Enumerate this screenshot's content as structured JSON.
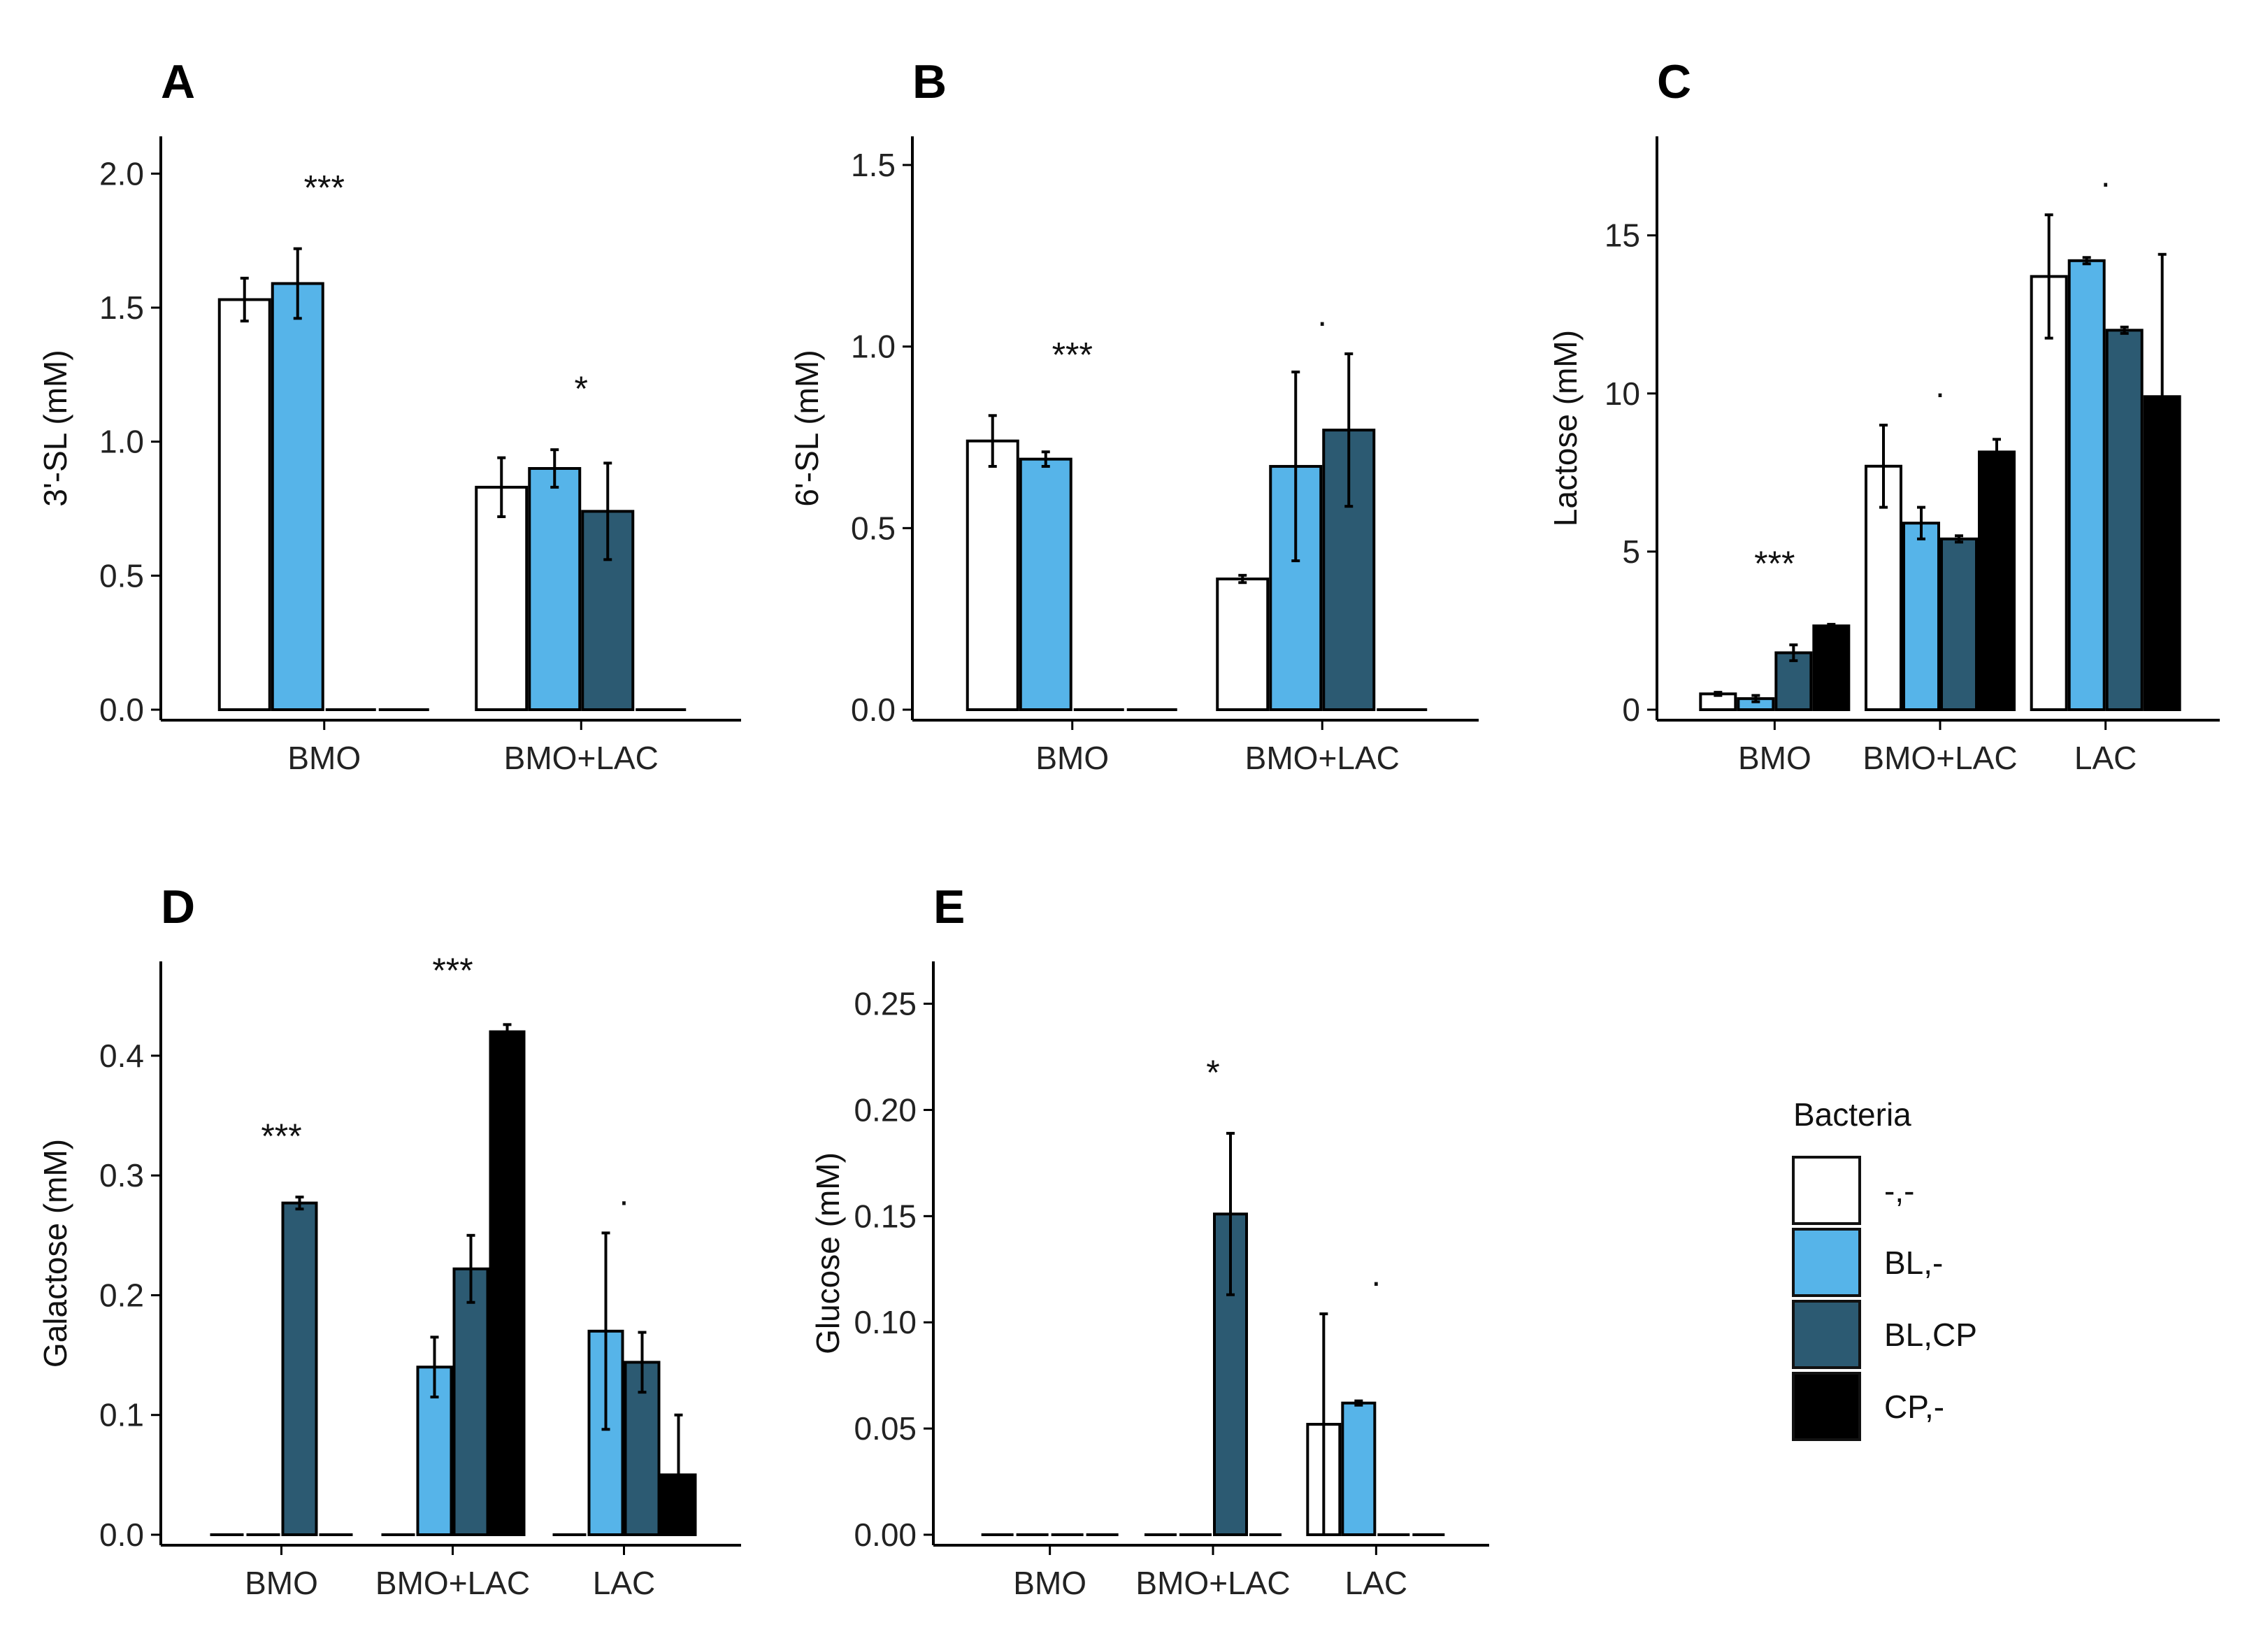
{
  "figure": {
    "legend": {
      "title": "Bacteria",
      "entries": [
        {
          "label": "-,-",
          "color": "#ffffff"
        },
        {
          "label": "BL,-",
          "color": "#56b4e9"
        },
        {
          "label": "BL,CP",
          "color": "#2c5a72"
        },
        {
          "label": "CP,-",
          "color": "#000000"
        }
      ]
    }
  },
  "chart_data": [
    {
      "panel": "A",
      "type": "bar",
      "ylabel": "3'-SL (mM)",
      "categories": [
        "BMO",
        "BMO+LAC"
      ],
      "ylim": [
        0,
        2.1
      ],
      "yticks": [
        0.0,
        0.5,
        1.0,
        1.5,
        2.0
      ],
      "tick_labels": [
        "0.0",
        "0.5",
        "1.0",
        "1.5",
        "2.0"
      ],
      "series": [
        {
          "name": "-,-",
          "values": [
            1.53,
            0.83
          ],
          "errors": [
            0.08,
            0.11
          ]
        },
        {
          "name": "BL,-",
          "values": [
            1.59,
            0.9
          ],
          "errors": [
            0.13,
            0.07
          ]
        },
        {
          "name": "BL,CP",
          "values": [
            0,
            0.74
          ],
          "errors": [
            0,
            0.18
          ]
        },
        {
          "name": "CP,-",
          "values": [
            0,
            0
          ],
          "errors": [
            0,
            0
          ]
        }
      ],
      "annotations": [
        {
          "group": 0,
          "text": "***"
        },
        {
          "group": 1,
          "text": "*"
        }
      ]
    },
    {
      "panel": "B",
      "type": "bar",
      "ylabel": "6'-SL (mM)",
      "categories": [
        "BMO",
        "BMO+LAC"
      ],
      "ylim": [
        0,
        1.55
      ],
      "yticks": [
        0.0,
        0.5,
        1.0,
        1.5
      ],
      "tick_labels": [
        "0.0",
        "0.5",
        "1.0",
        "1.5"
      ],
      "series": [
        {
          "name": "-,-",
          "values": [
            0.74,
            0.36
          ],
          "errors": [
            0.07,
            0.01
          ]
        },
        {
          "name": "BL,-",
          "values": [
            0.69,
            0.67
          ],
          "errors": [
            0.02,
            0.26
          ]
        },
        {
          "name": "BL,CP",
          "values": [
            0,
            0.77
          ],
          "errors": [
            0,
            0.21
          ]
        },
        {
          "name": "CP,-",
          "values": [
            0,
            0
          ],
          "errors": [
            0,
            0
          ]
        }
      ],
      "annotations": [
        {
          "group": 0,
          "text": "***"
        },
        {
          "group": 1,
          "text": "."
        }
      ]
    },
    {
      "panel": "C",
      "type": "bar",
      "ylabel": "Lactose (mM)",
      "categories": [
        "BMO",
        "BMO+LAC",
        "LAC"
      ],
      "ylim": [
        0,
        17.8
      ],
      "yticks": [
        0,
        5,
        10,
        15
      ],
      "tick_labels": [
        "0",
        "5",
        "10",
        "15"
      ],
      "series": [
        {
          "name": "-,-",
          "values": [
            0.5,
            7.7,
            13.7
          ],
          "errors": [
            0.05,
            1.3,
            1.95
          ]
        },
        {
          "name": "BL,-",
          "values": [
            0.35,
            5.9,
            14.2
          ],
          "errors": [
            0.1,
            0.5,
            0.1
          ]
        },
        {
          "name": "BL,CP",
          "values": [
            1.8,
            5.4,
            12.0
          ],
          "errors": [
            0.25,
            0.1,
            0.1
          ]
        },
        {
          "name": "CP,-",
          "values": [
            2.65,
            8.15,
            9.9
          ],
          "errors": [
            0.05,
            0.4,
            4.5
          ]
        }
      ],
      "annotations": [
        {
          "group": 0,
          "text": "***"
        },
        {
          "group": 1,
          "text": "."
        },
        {
          "group": 2,
          "text": "."
        }
      ]
    },
    {
      "panel": "D",
      "type": "bar",
      "ylabel": "Galactose (mM)",
      "categories": [
        "BMO",
        "BMO+LAC",
        "LAC"
      ],
      "ylim": [
        0,
        0.47
      ],
      "yticks": [
        0.0,
        0.1,
        0.2,
        0.3,
        0.4
      ],
      "tick_labels": [
        "0.0",
        "0.1",
        "0.2",
        "0.3",
        "0.4"
      ],
      "series": [
        {
          "name": "-,-",
          "values": [
            0,
            0,
            0
          ],
          "errors": [
            0,
            0,
            0
          ]
        },
        {
          "name": "BL,-",
          "values": [
            0,
            0.14,
            0.17
          ],
          "errors": [
            0,
            0.025,
            0.082
          ]
        },
        {
          "name": "BL,CP",
          "values": [
            0.277,
            0.222,
            0.144
          ],
          "errors": [
            0.005,
            0.028,
            0.025
          ]
        },
        {
          "name": "CP,-",
          "values": [
            0,
            0.42,
            0.05
          ],
          "errors": [
            0,
            0.006,
            0.05
          ]
        }
      ],
      "annotations": [
        {
          "group": 0,
          "text": "***"
        },
        {
          "group": 1,
          "text": "***"
        },
        {
          "group": 2,
          "text": "."
        }
      ]
    },
    {
      "panel": "E",
      "type": "bar",
      "ylabel": "Glucose (mM)",
      "categories": [
        "BMO",
        "BMO+LAC",
        "LAC"
      ],
      "ylim": [
        0,
        0.265
      ],
      "yticks": [
        0.0,
        0.05,
        0.1,
        0.15,
        0.2,
        0.25
      ],
      "tick_labels": [
        "0.00",
        "0.05",
        "0.10",
        "0.15",
        "0.20",
        "0.25"
      ],
      "series": [
        {
          "name": "-,-",
          "values": [
            0,
            0,
            0.052
          ],
          "errors": [
            0,
            0,
            0.052
          ]
        },
        {
          "name": "BL,-",
          "values": [
            0,
            0,
            0.062
          ],
          "errors": [
            0,
            0,
            0.001
          ]
        },
        {
          "name": "BL,CP",
          "values": [
            0,
            0.151,
            0
          ],
          "errors": [
            0,
            0.038,
            0
          ]
        },
        {
          "name": "CP,-",
          "values": [
            0,
            0,
            0
          ],
          "errors": [
            0,
            0,
            0
          ]
        }
      ],
      "annotations": [
        {
          "group": 1,
          "text": "*"
        },
        {
          "group": 2,
          "text": "."
        }
      ]
    }
  ]
}
